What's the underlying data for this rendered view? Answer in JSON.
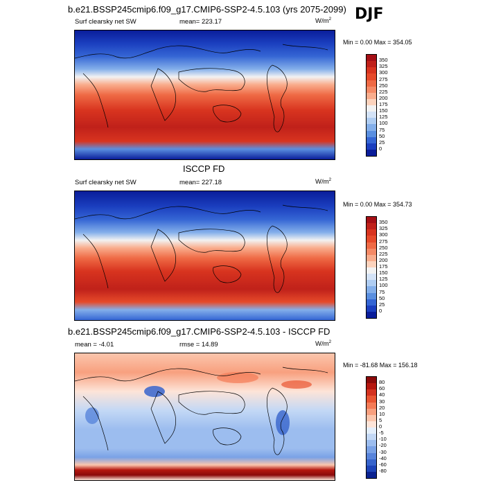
{
  "season": "DJF",
  "panels": [
    {
      "title": "b.e21.BSSP245cmip6.f09_g17.CMIP6-SSP2-4.5.103 (yrs 2075-2099)",
      "variable": "Surf clearsky net SW",
      "stat": "mean= 223.17",
      "units_base": "W/m",
      "units_exp": "2",
      "minmax": "Min =   0.00 Max = 354.05",
      "colorbar_labels": [
        "350",
        "325",
        "300",
        "275",
        "250",
        "225",
        "200",
        "175",
        "150",
        "125",
        "100",
        "75",
        "50",
        "25",
        "0"
      ],
      "colorbar_colors": [
        "#a50f15",
        "#c0211a",
        "#d8341f",
        "#e64a2a",
        "#ef6a45",
        "#f58a66",
        "#f9ad8d",
        "#fcd3bd",
        "#f2f2f2",
        "#d4e3f7",
        "#afcdf2",
        "#84afea",
        "#5a8fe0",
        "#3566d4",
        "#1b3fbf",
        "#0a1d9a"
      ],
      "kind": "abs"
    },
    {
      "title": "ISCCP FD",
      "variable": "Surf clearsky net SW",
      "stat": "mean= 227.18",
      "units_base": "W/m",
      "units_exp": "2",
      "minmax": "Min =   0.00 Max = 354.73",
      "colorbar_labels": [
        "350",
        "325",
        "300",
        "275",
        "250",
        "225",
        "200",
        "175",
        "150",
        "125",
        "100",
        "75",
        "50",
        "25",
        "0"
      ],
      "colorbar_colors": [
        "#a50f15",
        "#c0211a",
        "#d8341f",
        "#e64a2a",
        "#ef6a45",
        "#f58a66",
        "#f9ad8d",
        "#fcd3bd",
        "#f2f2f2",
        "#d4e3f7",
        "#afcdf2",
        "#84afea",
        "#5a8fe0",
        "#3566d4",
        "#1b3fbf",
        "#0a1d9a"
      ],
      "kind": "abs"
    },
    {
      "title": "b.e21.BSSP245cmip6.f09_g17.CMIP6-SSP2-4.5.103 - ISCCP FD",
      "variable": "mean =  -4.01",
      "stat": "rmse =  14.89",
      "units_base": "W/m",
      "units_exp": "2",
      "minmax": "Min = -81.68 Max = 156.18",
      "colorbar_labels": [
        "80",
        "60",
        "40",
        "30",
        "20",
        "10",
        "5",
        "0",
        "-5",
        "-10",
        "-20",
        "-30",
        "-40",
        "-60",
        "-80"
      ],
      "colorbar_colors": [
        "#8b0a0a",
        "#b5170f",
        "#d4321f",
        "#e95532",
        "#f47b56",
        "#f8a07f",
        "#fbc6ad",
        "#fde4d8",
        "#e3eefb",
        "#c3d8f5",
        "#9cbdef",
        "#7aa2e6",
        "#5884db",
        "#3764cc",
        "#1d44b8",
        "#0a2290"
      ],
      "kind": "diff"
    }
  ]
}
